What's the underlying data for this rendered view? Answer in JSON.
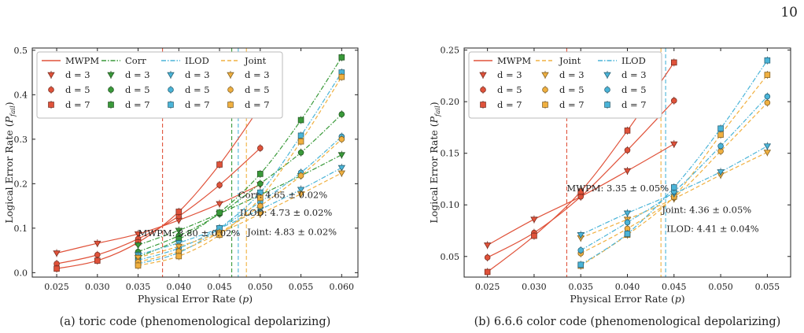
{
  "page_number": "10",
  "chart_data": [
    {
      "type": "line",
      "caption": "(a) toric code (phenomenological depolarizing)",
      "xlabel": "Physical Error Rate (p)",
      "ylabel": "Logical Error Rate (P_fail)",
      "xlim": [
        0.022,
        0.062
      ],
      "ylim": [
        -0.01,
        0.505
      ],
      "xticks": [
        "0.025",
        "0.030",
        "0.035",
        "0.040",
        "0.045",
        "0.050",
        "0.055",
        "0.060"
      ],
      "yticks": [
        "0.0",
        "0.1",
        "0.2",
        "0.3",
        "0.4",
        "0.5"
      ],
      "legend_headers": [
        "MWPM",
        "Corr",
        "ILOD",
        "Joint"
      ],
      "legend_position": "top-left",
      "decoders": [
        {
          "name": "MWPM",
          "color": "#e0523a",
          "style": "solid",
          "series": [
            {
              "d": "d = 3",
              "marker": "tri",
              "x": [
                0.025,
                0.03,
                0.035,
                0.04,
                0.045,
                0.05
              ],
              "y": [
                0.044,
                0.066,
                0.087,
                0.118,
                0.155,
                0.198
              ]
            },
            {
              "d": "d = 5",
              "marker": "circle",
              "x": [
                0.025,
                0.03,
                0.035,
                0.04,
                0.045,
                0.05
              ],
              "y": [
                0.02,
                0.04,
                0.076,
                0.127,
                0.197,
                0.28
              ]
            },
            {
              "d": "d = 7",
              "marker": "square",
              "x": [
                0.025,
                0.03,
                0.035,
                0.04,
                0.045,
                0.05
              ],
              "y": [
                0.009,
                0.027,
                0.068,
                0.137,
                0.243,
                0.373
              ]
            }
          ]
        },
        {
          "name": "Corr",
          "color": "#3a9a3a",
          "style": "dashdot",
          "series": [
            {
              "d": "d = 3",
              "marker": "tri",
              "x": [
                0.035,
                0.04,
                0.045,
                0.05,
                0.055,
                0.06
              ],
              "y": [
                0.062,
                0.095,
                0.133,
                0.175,
                0.218,
                0.265
              ]
            },
            {
              "d": "d = 5",
              "marker": "circle",
              "x": [
                0.035,
                0.04,
                0.045,
                0.05,
                0.055,
                0.06
              ],
              "y": [
                0.047,
                0.083,
                0.132,
                0.2,
                0.27,
                0.356
              ]
            },
            {
              "d": "d = 7",
              "marker": "square",
              "x": [
                0.035,
                0.04,
                0.045,
                0.05,
                0.055,
                0.06
              ],
              "y": [
                0.035,
                0.075,
                0.135,
                0.222,
                0.343,
                0.484
              ]
            }
          ]
        },
        {
          "name": "ILOD",
          "color": "#4ab4d8",
          "style": "dashdot",
          "series": [
            {
              "d": "d = 3",
              "marker": "tri",
              "x": [
                0.035,
                0.04,
                0.045,
                0.05,
                0.055,
                0.06
              ],
              "y": [
                0.04,
                0.067,
                0.1,
                0.142,
                0.187,
                0.236
              ]
            },
            {
              "d": "d = 5",
              "marker": "circle",
              "x": [
                0.035,
                0.04,
                0.045,
                0.05,
                0.055,
                0.06
              ],
              "y": [
                0.028,
                0.055,
                0.1,
                0.159,
                0.225,
                0.306
              ]
            },
            {
              "d": "d = 7",
              "marker": "square",
              "x": [
                0.035,
                0.04,
                0.045,
                0.05,
                0.055,
                0.06
              ],
              "y": [
                0.02,
                0.045,
                0.1,
                0.18,
                0.308,
                0.45
              ]
            }
          ]
        },
        {
          "name": "Joint",
          "color": "#f0b040",
          "style": "dashed",
          "series": [
            {
              "d": "d = 3",
              "marker": "tri",
              "x": [
                0.035,
                0.04,
                0.045,
                0.05,
                0.055,
                0.06
              ],
              "y": [
                0.034,
                0.059,
                0.09,
                0.132,
                0.177,
                0.224
              ]
            },
            {
              "d": "d = 5",
              "marker": "circle",
              "x": [
                0.035,
                0.04,
                0.045,
                0.05,
                0.055,
                0.06
              ],
              "y": [
                0.024,
                0.048,
                0.09,
                0.15,
                0.218,
                0.3
              ]
            },
            {
              "d": "d = 7",
              "marker": "square",
              "x": [
                0.035,
                0.04,
                0.045,
                0.05,
                0.055,
                0.06
              ],
              "y": [
                0.016,
                0.037,
                0.085,
                0.168,
                0.295,
                0.44
              ]
            }
          ]
        }
      ],
      "thresholds": [
        {
          "decoder": "MWPM",
          "x": 0.038,
          "label": "MWPM: 3.80 ± 0.02%",
          "label_x": 0.035,
          "label_y": 0.082
        },
        {
          "decoder": "Corr",
          "x": 0.0465,
          "label": "Corr: 4.65 ± 0.02%",
          "label_x": 0.0473,
          "label_y": 0.168
        },
        {
          "decoder": "ILOD",
          "x": 0.0473,
          "label": "ILOD: 4.73 ± 0.02%",
          "label_x": 0.0475,
          "label_y": 0.128
        },
        {
          "decoder": "Joint",
          "x": 0.0483,
          "label": "Joint: 4.83 ± 0.02%",
          "label_x": 0.0484,
          "label_y": 0.085
        }
      ]
    },
    {
      "type": "line",
      "caption": "(b) 6.6.6 color code (phenomenological depolarizing)",
      "xlabel": "Physical Error Rate (p)",
      "ylabel": "Logical Error Rate (P_fail)",
      "xlim": [
        0.0225,
        0.0575
      ],
      "ylim": [
        0.03,
        0.252
      ],
      "xticks": [
        "0.025",
        "0.030",
        "0.035",
        "0.040",
        "0.045",
        "0.050",
        "0.055"
      ],
      "yticks": [
        "0.05",
        "0.10",
        "0.15",
        "0.20",
        "0.25"
      ],
      "legend_headers": [
        "MWPM",
        "Joint",
        "ILOD"
      ],
      "legend_position": "top-left",
      "decoders": [
        {
          "name": "MWPM",
          "color": "#e0523a",
          "style": "solid",
          "series": [
            {
              "d": "d = 3",
              "marker": "tri",
              "x": [
                0.025,
                0.03,
                0.035,
                0.04,
                0.045
              ],
              "y": [
                0.061,
                0.086,
                0.108,
                0.133,
                0.159
              ]
            },
            {
              "d": "d = 5",
              "marker": "circle",
              "x": [
                0.025,
                0.03,
                0.035,
                0.04,
                0.045
              ],
              "y": [
                0.049,
                0.073,
                0.108,
                0.153,
                0.201
              ]
            },
            {
              "d": "d = 7",
              "marker": "square",
              "x": [
                0.025,
                0.03,
                0.035,
                0.04,
                0.045
              ],
              "y": [
                0.035,
                0.07,
                0.113,
                0.172,
                0.238
              ]
            }
          ]
        },
        {
          "name": "Joint",
          "color": "#f0b040",
          "style": "dashed",
          "series": [
            {
              "d": "d = 3",
              "marker": "tri",
              "x": [
                0.035,
                0.04,
                0.045,
                0.05,
                0.055
              ],
              "y": [
                0.068,
                0.086,
                0.106,
                0.129,
                0.151
              ]
            },
            {
              "d": "d = 5",
              "marker": "circle",
              "x": [
                0.035,
                0.04,
                0.045,
                0.05,
                0.055
              ],
              "y": [
                0.053,
                0.077,
                0.107,
                0.152,
                0.199
              ]
            },
            {
              "d": "d = 7",
              "marker": "square",
              "x": [
                0.035,
                0.04,
                0.045,
                0.05,
                0.055
              ],
              "y": [
                0.041,
                0.071,
                0.108,
                0.168,
                0.226
              ]
            }
          ]
        },
        {
          "name": "ILOD",
          "color": "#4ab4d8",
          "style": "dashdot",
          "series": [
            {
              "d": "d = 3",
              "marker": "tri",
              "x": [
                0.035,
                0.04,
                0.045,
                0.05,
                0.055
              ],
              "y": [
                0.071,
                0.092,
                0.111,
                0.132,
                0.157
              ]
            },
            {
              "d": "d = 5",
              "marker": "circle",
              "x": [
                0.035,
                0.04,
                0.045,
                0.05,
                0.055
              ],
              "y": [
                0.056,
                0.083,
                0.113,
                0.157,
                0.205
              ]
            },
            {
              "d": "d = 7",
              "marker": "square",
              "x": [
                0.035,
                0.04,
                0.045,
                0.05,
                0.055
              ],
              "y": [
                0.042,
                0.072,
                0.117,
                0.174,
                0.24
              ]
            }
          ]
        }
      ],
      "thresholds": [
        {
          "decoder": "MWPM",
          "x": 0.0335,
          "label": "MWPM: 3.35 ± 0.05%",
          "label_x": 0.0335,
          "label_y": 0.113
        },
        {
          "decoder": "Joint",
          "x": 0.0436,
          "label": "Joint: 4.36 ± 0.05%",
          "label_x": 0.0437,
          "label_y": 0.092
        },
        {
          "decoder": "ILOD",
          "x": 0.0441,
          "label": "ILOD: 4.41 ± 0.04%",
          "label_x": 0.0442,
          "label_y": 0.074
        }
      ]
    }
  ]
}
